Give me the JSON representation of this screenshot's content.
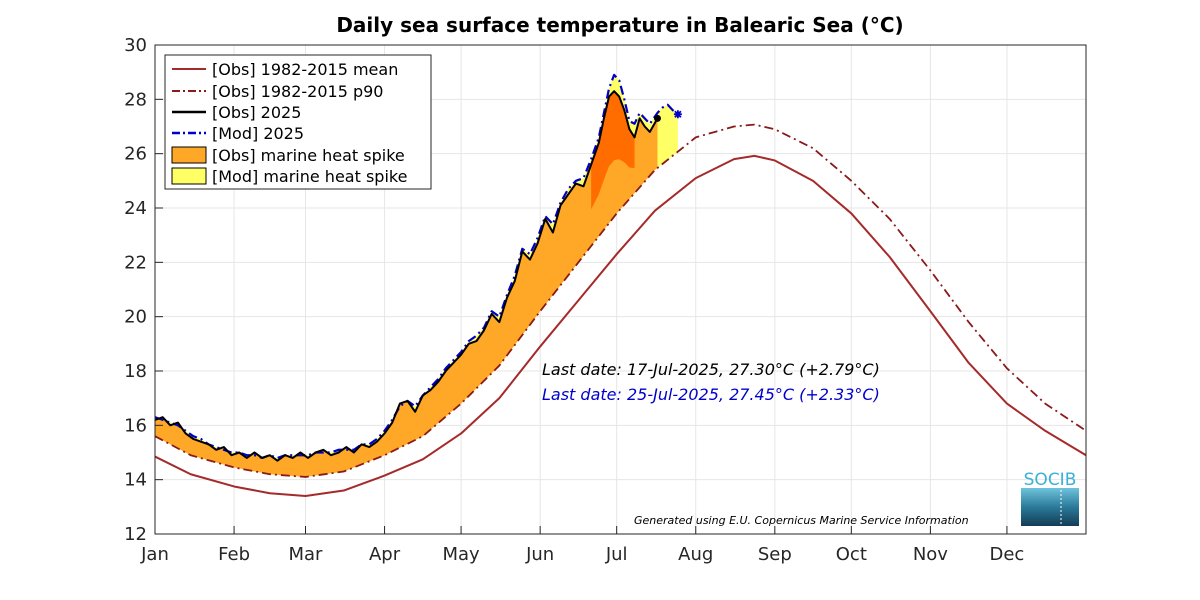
{
  "chart_data": {
    "type": "line",
    "title": "Daily sea surface temperature in Balearic Sea (°C)",
    "xlabel": "",
    "ylabel": "",
    "ylim": [
      12,
      30
    ],
    "yticks": [
      12,
      14,
      16,
      18,
      20,
      22,
      24,
      26,
      28,
      30
    ],
    "xlim_day": [
      1,
      366
    ],
    "months": [
      {
        "label": "Jan",
        "day": 1
      },
      {
        "label": "Feb",
        "day": 32
      },
      {
        "label": "Mar",
        "day": 60
      },
      {
        "label": "Apr",
        "day": 91
      },
      {
        "label": "May",
        "day": 121
      },
      {
        "label": "Jun",
        "day": 152
      },
      {
        "label": "Jul",
        "day": 182
      },
      {
        "label": "Aug",
        "day": 213
      },
      {
        "label": "Sep",
        "day": 244
      },
      {
        "label": "Oct",
        "day": 274
      },
      {
        "label": "Nov",
        "day": 305
      },
      {
        "label": "Dec",
        "day": 335
      }
    ],
    "grid": true,
    "legend_position": "top-left",
    "series": [
      {
        "name": "[Obs] 1982-2015 mean",
        "color": "#a52a2a",
        "style": "solid",
        "day": [
          1,
          15,
          32,
          46,
          60,
          75,
          91,
          106,
          121,
          136,
          152,
          167,
          182,
          197,
          213,
          228,
          236,
          244,
          259,
          274,
          289,
          305,
          320,
          335,
          350,
          366
        ],
        "values": [
          14.85,
          14.2,
          13.75,
          13.5,
          13.4,
          13.6,
          14.15,
          14.75,
          15.7,
          17.0,
          18.9,
          20.6,
          22.3,
          23.9,
          25.1,
          25.8,
          25.92,
          25.75,
          25.0,
          23.8,
          22.2,
          20.2,
          18.3,
          16.8,
          15.8,
          14.9
        ]
      },
      {
        "name": "[Obs] 1982-2015 p90",
        "color": "#8b1a1a",
        "style": "dashdot",
        "day": [
          1,
          15,
          32,
          46,
          60,
          75,
          91,
          106,
          121,
          136,
          152,
          167,
          182,
          197,
          213,
          228,
          236,
          244,
          259,
          274,
          289,
          305,
          320,
          335,
          350,
          366
        ],
        "values": [
          15.6,
          14.9,
          14.45,
          14.2,
          14.1,
          14.3,
          14.9,
          15.6,
          16.8,
          18.2,
          20.2,
          22.0,
          23.8,
          25.4,
          26.6,
          27.0,
          27.07,
          26.9,
          26.2,
          25.0,
          23.6,
          21.7,
          19.8,
          18.1,
          16.8,
          15.8
        ]
      },
      {
        "name": "[Obs] 2025",
        "color": "#000000",
        "style": "solid",
        "day": [
          1,
          4,
          7,
          10,
          13,
          16,
          19,
          22,
          25,
          28,
          31,
          34,
          37,
          40,
          43,
          46,
          49,
          52,
          55,
          58,
          61,
          64,
          67,
          70,
          73,
          76,
          79,
          82,
          85,
          88,
          91,
          94,
          97,
          100,
          103,
          106,
          109,
          112,
          115,
          118,
          121,
          124,
          127,
          130,
          133,
          136,
          139,
          142,
          145,
          148,
          151,
          154,
          157,
          160,
          163,
          166,
          169,
          172,
          175,
          177,
          179,
          181,
          183,
          185,
          187,
          189,
          191,
          193,
          195,
          198
        ],
        "values": [
          16.2,
          16.3,
          16.0,
          16.1,
          15.7,
          15.5,
          15.4,
          15.3,
          15.1,
          15.2,
          14.9,
          15.0,
          14.8,
          15.0,
          14.8,
          14.9,
          14.7,
          14.9,
          14.8,
          15.0,
          14.8,
          15.0,
          15.1,
          14.9,
          15.0,
          15.2,
          15.0,
          15.3,
          15.2,
          15.4,
          15.7,
          16.1,
          16.8,
          16.9,
          16.5,
          17.1,
          17.3,
          17.6,
          18.0,
          18.3,
          18.6,
          19.0,
          19.1,
          19.5,
          20.1,
          19.8,
          20.7,
          21.3,
          22.4,
          22.1,
          22.7,
          23.6,
          23.1,
          24.1,
          24.5,
          24.9,
          24.8,
          25.6,
          26.4,
          27.3,
          28.1,
          28.3,
          28.1,
          27.6,
          26.9,
          26.6,
          27.3,
          27.0,
          26.8,
          27.3
        ]
      },
      {
        "name": "[Mod] 2025",
        "color": "#0000cc",
        "style": "dashdot",
        "day": [
          1,
          4,
          7,
          10,
          13,
          16,
          19,
          22,
          25,
          28,
          31,
          34,
          37,
          40,
          43,
          46,
          49,
          52,
          55,
          58,
          61,
          64,
          67,
          70,
          73,
          76,
          79,
          82,
          85,
          88,
          91,
          94,
          97,
          100,
          103,
          106,
          109,
          112,
          115,
          118,
          121,
          124,
          127,
          130,
          133,
          136,
          139,
          142,
          145,
          148,
          151,
          154,
          157,
          160,
          163,
          166,
          169,
          172,
          175,
          177,
          179,
          181,
          183,
          185,
          187,
          189,
          191,
          193,
          195,
          198,
          200,
          202,
          204,
          206
        ],
        "values": [
          16.3,
          16.2,
          16.1,
          16.0,
          15.8,
          15.6,
          15.5,
          15.3,
          15.2,
          15.1,
          15.0,
          15.0,
          14.9,
          14.9,
          14.8,
          14.9,
          14.8,
          14.9,
          14.9,
          14.9,
          14.9,
          15.0,
          15.0,
          15.0,
          15.1,
          15.1,
          15.1,
          15.3,
          15.3,
          15.5,
          15.8,
          16.2,
          16.7,
          16.9,
          16.7,
          17.1,
          17.4,
          17.7,
          18.1,
          18.4,
          18.7,
          19.1,
          19.3,
          19.6,
          20.2,
          20.0,
          20.8,
          21.5,
          22.5,
          22.3,
          22.9,
          23.7,
          23.4,
          24.2,
          24.7,
          25.0,
          25.1,
          25.8,
          26.6,
          27.5,
          28.4,
          28.9,
          28.7,
          28.0,
          27.2,
          27.1,
          27.5,
          27.3,
          27.1,
          27.5,
          27.7,
          27.8,
          27.6,
          27.45
        ]
      }
    ],
    "fills": [
      {
        "name": "[Obs] marine heat spike",
        "color": "#ffa726",
        "accent": "#ff6d00"
      },
      {
        "name": "[Mod] marine heat spike",
        "color": "#ffff66"
      }
    ],
    "annotations": [
      {
        "text": "Last date: 17-Jul-2025, 27.30°C (+2.79°C)",
        "color": "#000000"
      },
      {
        "text": "Last date: 25-Jul-2025, 27.45°C (+2.33°C)",
        "color": "#0000cc"
      }
    ],
    "credit": "Generated using E.U. Copernicus Marine Service Information",
    "logo_text": "SOCIB"
  }
}
